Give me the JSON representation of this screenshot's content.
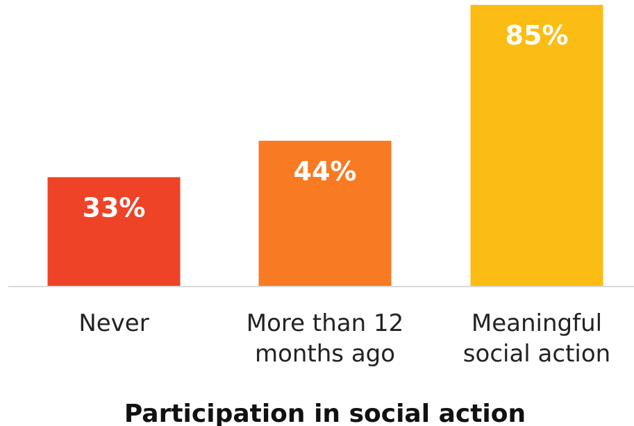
{
  "chart_data": {
    "type": "bar",
    "categories": [
      [
        "Never"
      ],
      [
        "More than 12",
        "months ago"
      ],
      [
        "Meaningful",
        "social action"
      ]
    ],
    "values": [
      33,
      44,
      85
    ],
    "value_labels": [
      "33%",
      "44%",
      "85%"
    ],
    "colors": [
      "#ee4327",
      "#f87a22",
      "#fbbd13"
    ],
    "xlabel": "Participation in social action",
    "ylabel": "",
    "ylim": [
      0,
      85
    ],
    "grid": false,
    "legend": "none",
    "baseline_color": "#d9d9d9"
  }
}
